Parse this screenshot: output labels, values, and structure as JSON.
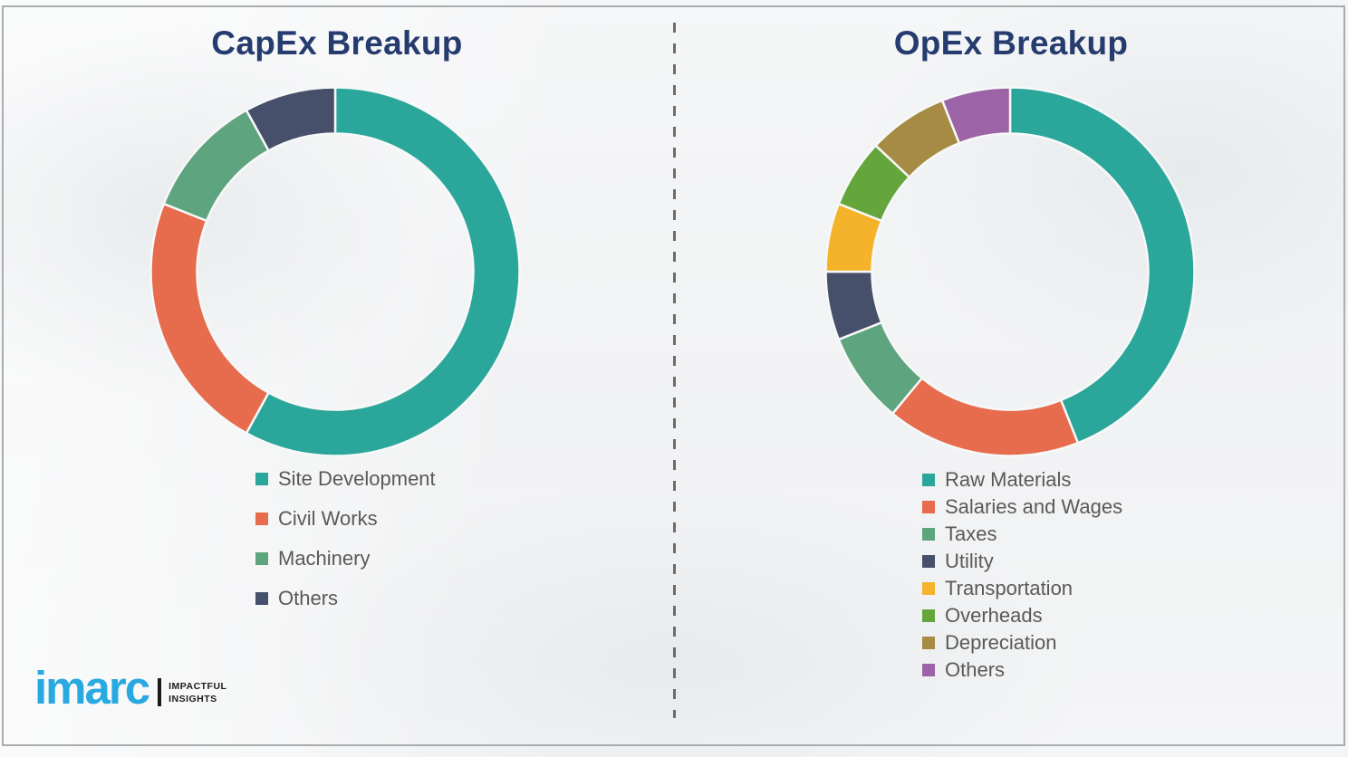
{
  "theme": {
    "title-color": "#263c6f",
    "legend-color": "#595959",
    "divider-color": "#555555",
    "border-color": "#aaadb0",
    "logo-blue": "#29a9e1",
    "logo-black": "#1b1b1b"
  },
  "brand": {
    "logo_text": "imarc",
    "tagline_line1": "IMPACTFUL",
    "tagline_line2": "INSIGHTS"
  },
  "chart_data": [
    {
      "type": "pie",
      "subtype": "donut",
      "title": "CapEx Breakup",
      "start_angle_deg": 0,
      "direction": "clockwise",
      "legend_position": "below-left",
      "values_note": "percent shares estimated from arc angles; no data labels shown in figure",
      "categories": [
        "Site Development",
        "Civil Works",
        "Machinery",
        "Others"
      ],
      "values": [
        58,
        23,
        11,
        8
      ],
      "colors": [
        "#2ba69a",
        "#e66c4d",
        "#5ea47e",
        "#47506b"
      ]
    },
    {
      "type": "pie",
      "subtype": "donut",
      "title": "OpEx Breakup",
      "start_angle_deg": 0,
      "direction": "clockwise",
      "legend_position": "below-left",
      "values_note": "percent shares estimated from arc angles; no data labels shown in figure",
      "categories": [
        "Raw Materials",
        "Salaries and Wages",
        "Taxes",
        "Utility",
        "Transportation",
        "Overheads",
        "Depreciation",
        "Others"
      ],
      "values": [
        44,
        17,
        8,
        6,
        6,
        6,
        7,
        6
      ],
      "colors": [
        "#2ba69a",
        "#e66c4d",
        "#5ea47e",
        "#47506b",
        "#f5b32b",
        "#64a53c",
        "#a68b45",
        "#9c63a6"
      ]
    }
  ]
}
